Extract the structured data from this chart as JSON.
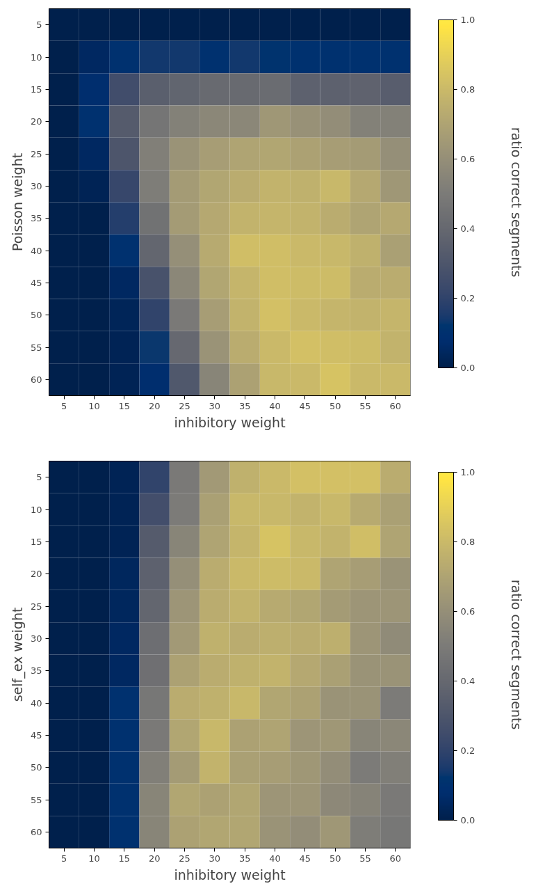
{
  "chart_data": [
    {
      "type": "heatmap",
      "xlabel": "inhibitory weight",
      "ylabel": "Poisson weight",
      "clabel": "ratio correct segments",
      "categories": [
        "5",
        "10",
        "15",
        "20",
        "25",
        "30",
        "35",
        "40",
        "45",
        "50",
        "55",
        "60"
      ],
      "y_categories": [
        "5",
        "10",
        "15",
        "20",
        "25",
        "30",
        "35",
        "40",
        "45",
        "50",
        "55",
        "60"
      ],
      "clim": [
        0,
        1
      ],
      "cticks": [
        {
          "value": 0,
          "label": "0.0"
        },
        {
          "value": 0.2,
          "label": "0.2"
        },
        {
          "value": 0.4,
          "label": "0.4"
        },
        {
          "value": 0.6,
          "label": "0.6"
        },
        {
          "value": 0.8,
          "label": "0.8"
        },
        {
          "value": 1,
          "label": "1.0"
        }
      ],
      "grid": false,
      "cells": [
        [
          0,
          0,
          0,
          0,
          0,
          0,
          0,
          0,
          0,
          0,
          0,
          0
        ],
        [
          0,
          0.05,
          0.1,
          0.14,
          0.14,
          0.1,
          0.14,
          0.11,
          0.1,
          0.1,
          0.1,
          0.1
        ],
        [
          0,
          0.08,
          0.25,
          0.35,
          0.38,
          0.41,
          0.41,
          0.42,
          0.36,
          0.36,
          0.37,
          0.34
        ],
        [
          0,
          0.1,
          0.33,
          0.47,
          0.53,
          0.56,
          0.56,
          0.64,
          0.61,
          0.59,
          0.53,
          0.53
        ],
        [
          0,
          0.05,
          0.3,
          0.52,
          0.62,
          0.67,
          0.7,
          0.71,
          0.69,
          0.67,
          0.66,
          0.6
        ],
        [
          0,
          0.02,
          0.22,
          0.51,
          0.66,
          0.71,
          0.74,
          0.77,
          0.76,
          0.79,
          0.72,
          0.64
        ],
        [
          0,
          0,
          0.17,
          0.45,
          0.66,
          0.72,
          0.77,
          0.78,
          0.77,
          0.74,
          0.7,
          0.72
        ],
        [
          0,
          0,
          0.1,
          0.39,
          0.6,
          0.73,
          0.82,
          0.82,
          0.8,
          0.79,
          0.76,
          0.68
        ],
        [
          0,
          0,
          0.05,
          0.28,
          0.56,
          0.71,
          0.78,
          0.82,
          0.81,
          0.81,
          0.74,
          0.74
        ],
        [
          0,
          0,
          0.03,
          0.2,
          0.49,
          0.67,
          0.77,
          0.83,
          0.8,
          0.78,
          0.77,
          0.78
        ],
        [
          0,
          0,
          0.02,
          0.13,
          0.4,
          0.62,
          0.74,
          0.8,
          0.83,
          0.82,
          0.81,
          0.77
        ],
        [
          0,
          0,
          0.02,
          0.08,
          0.31,
          0.55,
          0.69,
          0.79,
          0.8,
          0.84,
          0.8,
          0.8
        ]
      ]
    },
    {
      "type": "heatmap",
      "xlabel": "inhibitory weight",
      "ylabel": "self_ex weight",
      "clabel": "ratio correct segments",
      "categories": [
        "5",
        "10",
        "15",
        "20",
        "25",
        "30",
        "35",
        "40",
        "45",
        "50",
        "55",
        "60"
      ],
      "y_categories": [
        "5",
        "10",
        "15",
        "20",
        "25",
        "30",
        "35",
        "40",
        "45",
        "50",
        "55",
        "60"
      ],
      "clim": [
        0,
        1
      ],
      "cticks": [
        {
          "value": 0,
          "label": "0.0"
        },
        {
          "value": 0.2,
          "label": "0.2"
        },
        {
          "value": 0.4,
          "label": "0.4"
        },
        {
          "value": 0.6,
          "label": "0.6"
        },
        {
          "value": 0.8,
          "label": "0.8"
        },
        {
          "value": 1,
          "label": "1.0"
        }
      ],
      "grid": false,
      "cells": [
        [
          0,
          0,
          0.02,
          0.2,
          0.49,
          0.65,
          0.76,
          0.8,
          0.83,
          0.83,
          0.83,
          0.74
        ],
        [
          0,
          0,
          0.02,
          0.26,
          0.5,
          0.68,
          0.79,
          0.79,
          0.77,
          0.79,
          0.73,
          0.68
        ],
        [
          0,
          0,
          0.02,
          0.33,
          0.55,
          0.7,
          0.78,
          0.84,
          0.79,
          0.77,
          0.82,
          0.7
        ],
        [
          0,
          0,
          0.04,
          0.36,
          0.6,
          0.74,
          0.8,
          0.81,
          0.8,
          0.7,
          0.67,
          0.62
        ],
        [
          0,
          0,
          0.04,
          0.39,
          0.63,
          0.74,
          0.77,
          0.73,
          0.71,
          0.66,
          0.63,
          0.63
        ],
        [
          0,
          0,
          0.05,
          0.43,
          0.65,
          0.76,
          0.74,
          0.75,
          0.74,
          0.75,
          0.63,
          0.58
        ],
        [
          0,
          0,
          0.05,
          0.44,
          0.69,
          0.74,
          0.76,
          0.77,
          0.72,
          0.68,
          0.62,
          0.62
        ],
        [
          0,
          0,
          0.1,
          0.48,
          0.74,
          0.76,
          0.79,
          0.71,
          0.69,
          0.62,
          0.62,
          0.5
        ],
        [
          0,
          0,
          0.1,
          0.49,
          0.71,
          0.79,
          0.69,
          0.7,
          0.63,
          0.64,
          0.55,
          0.56
        ],
        [
          0,
          0,
          0.1,
          0.52,
          0.66,
          0.77,
          0.68,
          0.67,
          0.64,
          0.59,
          0.5,
          0.52
        ],
        [
          0,
          0,
          0.1,
          0.55,
          0.71,
          0.69,
          0.71,
          0.63,
          0.63,
          0.57,
          0.54,
          0.49
        ],
        [
          0,
          0,
          0.1,
          0.55,
          0.69,
          0.71,
          0.71,
          0.62,
          0.59,
          0.64,
          0.51,
          0.48
        ]
      ]
    }
  ]
}
